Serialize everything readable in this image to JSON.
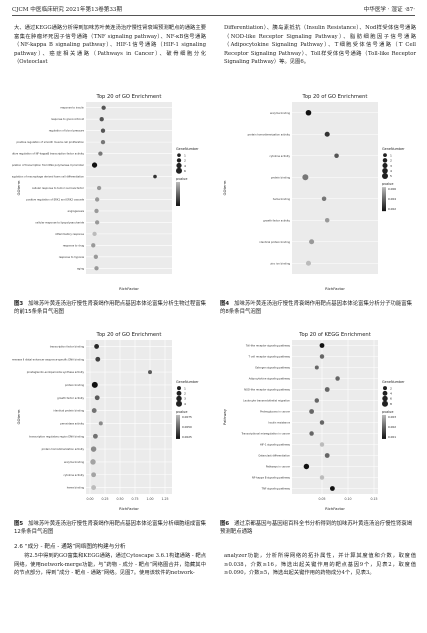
{
  "header": {
    "left": "CJCM 中医临床研究 2021年第13卷第33期",
    "right": "中华医学 · 湿证 ·87·"
  },
  "intro_left": "大、通过KEGG通路分析得到加味苏叶黄连汤治疗慢性肾衰竭预测靶点的通路主要富集在肿瘤坏死因子信号通路（TNF signaling pathway）、NF-κB信号通路（NF-kappa B signaling pathway）、HIF-1信号通路（HIF-1 signaling pathway）、癌症相关通路（Pathways in Cancer）、破骨细胞分化（Osteoclast",
  "intro_right": "Differentiation）、胰岛素抵抗（Insulin Resistance）、Nod样受体信号通路（NOD-like Receptor Signaling Pathway）、脂肪细胞因子信号通路（Adipocytokine Signaling Pathway）、T细胞受体信号通路（T Cell Receptor Signaling Pathway）、Toll样受体信号通路（Toll-like Receptor Signaling Pathway）等。见图6。",
  "section_title": "2.6 “成分 - 靶点 - 通路”网络图的构建与分析",
  "body_left": "将2.5中得到的GO富集和KEGG通路，通过Cytoscape 3.6.1构建通路 - 靶点网络，使用network-merge功能，与“药物 - 成分 - 靶点”网络图合并，隐藏其中的节点部分，得到“成分 - 靶点 - 通路”网络。见图7。使用该软件的network-",
  "body_right": "analyzer功能，分析所得网络的拓扑属性，并计算其度值和介数，取度值≥0.038，介数≥16，筛选出起关键作用的靶点基因9个，见表2，取度值≥0.090，介数≥5，筛选出起关键作用的药物成分4个，见表3。",
  "legend": {
    "count_title": "GeneNumber",
    "p_title": "pvalue"
  },
  "fig3": {
    "caption_num": "图3",
    "caption": "加味苏叶黄连汤治疗慢性肾衰竭作用靶点基因本体论富集分析生物过程富集的前15条条目气泡图"
  },
  "fig4": {
    "caption_num": "图4",
    "caption": "加味苏叶黄连汤治疗慢性肾衰竭作用靶点基因本体论富集分析分子功能富集的8条条目气泡图"
  },
  "fig5": {
    "caption_num": "图5",
    "caption": "加味苏叶黄连汤治疗慢性肾衰竭作用靶点基因本体论富集分析细胞组成富集12条条目气泡图"
  },
  "fig6": {
    "caption_num": "图6",
    "caption": "通过京都基因与基因组百科全书分析得到的加味苏叶黄连汤治疗慢性肾衰竭预测靶点通路"
  },
  "chart_data": [
    {
      "type": "scatter",
      "id": "fig3",
      "title": "Top 20 of GO Enrichment",
      "xlabel": "RichFactor",
      "ylabel": "GOterm",
      "xlim": [
        0,
        1.2
      ],
      "xticks": [],
      "legend_counts": [
        1,
        2,
        4,
        6
      ],
      "legend_p": [
        "",
        "",
        "",
        ""
      ],
      "categories": [
        "response to insulin",
        "response to glucocorticoid",
        "regulation of blood pressure",
        "positive regulation of smooth muscle cell proliferation",
        "positive regulation of NF-kappaB transcription factor activity",
        "negative regulation of transcription from RNA polymerase II promoter",
        "negative regulation of macrophage derived foam cell differentiation",
        "cellular response to tumor necrosis factor",
        "positive regulation of ERK1 and ERK2 cascade",
        "angiogenesis",
        "cellular response to lipopolysaccharide",
        "inflammatory response",
        "response to drug",
        "response to hypoxia",
        "aging"
      ],
      "x": [
        0.21,
        0.18,
        0.2,
        0.2,
        0.16,
        0.07,
        1.0,
        0.14,
        0.11,
        0.1,
        0.11,
        0.07,
        0.05,
        0.09,
        0.1
      ],
      "count": [
        2,
        2,
        2,
        2,
        2,
        4,
        1,
        2,
        2,
        2,
        2,
        2,
        2,
        2,
        2
      ],
      "pvalue": [
        0.03,
        0.03,
        0.03,
        0.04,
        0.04,
        0.01,
        0.02,
        0.05,
        0.05,
        0.05,
        0.05,
        0.06,
        0.05,
        0.05,
        0.05
      ]
    },
    {
      "type": "scatter",
      "id": "fig4",
      "title": "Top 20 of GO Enrichment",
      "xlabel": "RichFactor",
      "ylabel": "GOterm",
      "xlim": [
        0,
        0.25
      ],
      "xticks": [],
      "legend_counts": [
        1,
        2,
        3,
        4,
        5
      ],
      "legend_p": [
        "0.006",
        "0.004",
        "0.002"
      ],
      "categories": [
        "enzyme binding",
        "protein homodimerization activity",
        "cytokine activity",
        "protein binding",
        "heme binding",
        "growth factor activity",
        "identical protein binding",
        "zinc ion binding"
      ],
      "x": [
        0.04,
        0.1,
        0.13,
        0.03,
        0.09,
        0.1,
        0.05,
        0.04
      ],
      "count": [
        4,
        3,
        2,
        5,
        2,
        2,
        3,
        3
      ],
      "pvalue": [
        0.001,
        0.002,
        0.003,
        0.004,
        0.004,
        0.005,
        0.005,
        0.006
      ]
    },
    {
      "type": "scatter",
      "id": "fig5",
      "title": "Top 20 of GO Enrichment",
      "xlabel": "RichFactor",
      "ylabel": "GOterm",
      "xlim": [
        0,
        1.3
      ],
      "xticks": [
        "0.00",
        "0.25",
        "0.50",
        "0.75",
        "1.00",
        "1.25"
      ],
      "legend_counts": [
        1,
        2,
        3,
        4
      ],
      "legend_p": [
        "0.0075",
        "0.0050",
        "0.0025"
      ],
      "categories": [
        "transcription factor binding",
        "RNA polymerase II distal enhancer sequence-specific DNA binding",
        "prostaglandin-endoperoxide synthase activity",
        "protein binding",
        "growth factor activity",
        "identical protein binding",
        "peroxidase activity",
        "transcription regulatory region DNA binding",
        "protein homodimerization activity",
        "enzyme binding",
        "cytokine activity",
        "heme binding"
      ],
      "x": [
        0.11,
        0.13,
        1.0,
        0.08,
        0.12,
        0.07,
        0.18,
        0.09,
        0.06,
        0.05,
        0.06,
        0.06
      ],
      "count": [
        2,
        2,
        1,
        4,
        2,
        2,
        1,
        2,
        3,
        3,
        2,
        2
      ],
      "pvalue": [
        0.002,
        0.003,
        0.004,
        0.001,
        0.004,
        0.005,
        0.006,
        0.005,
        0.006,
        0.007,
        0.007,
        0.008
      ]
    },
    {
      "type": "scatter",
      "id": "fig6",
      "title": "Top 20 of KEGG Enrichment",
      "xlabel": "RichFactor",
      "ylabel": "Pathway",
      "xlim": [
        0,
        0.15
      ],
      "xticks": [
        "0.05",
        "0.10",
        "0.15"
      ],
      "legend_counts": [
        2,
        4,
        6,
        8
      ],
      "legend_p": [
        "0.003",
        "0.002",
        "0.001"
      ],
      "categories": [
        "Toll-like receptor signaling pathway",
        "T cell receptor signaling pathway",
        "Estrogen signaling pathway",
        "Adipocytokine signaling pathway",
        "NOD-like receptor signaling pathway",
        "Leukocyte transendothelial migration",
        "Proteoglycans in cancer",
        "Insulin resistance",
        "Transcriptional misregulation in cancer",
        "HIF-1 signaling pathway",
        "Osteoclast differentiation",
        "Pathways in cancer",
        "NF-kappa B signaling pathway",
        "TNF signaling pathway"
      ],
      "x": [
        0.05,
        0.05,
        0.04,
        0.08,
        0.06,
        0.04,
        0.03,
        0.05,
        0.03,
        0.05,
        0.06,
        0.02,
        0.05,
        0.07
      ],
      "count": [
        4,
        3,
        2,
        3,
        4,
        3,
        4,
        3,
        3,
        3,
        4,
        6,
        3,
        4
      ],
      "pvalue": [
        0.001,
        0.002,
        0.002,
        0.002,
        0.002,
        0.002,
        0.002,
        0.002,
        0.002,
        0.003,
        0.002,
        0.001,
        0.003,
        0.001
      ]
    }
  ]
}
